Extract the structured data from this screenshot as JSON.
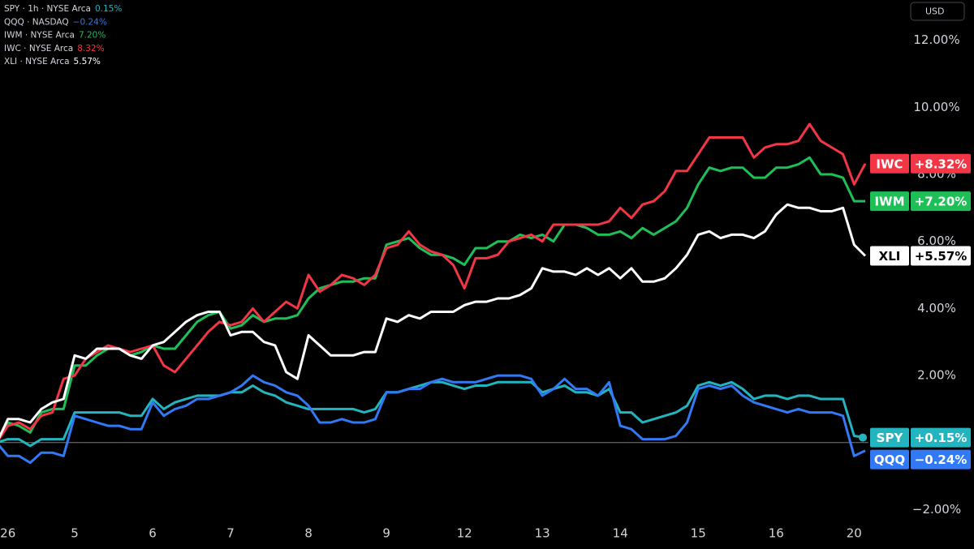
{
  "chart_data": {
    "type": "line",
    "currency": "USD",
    "categories": [
      null,
      "26",
      null,
      null,
      null,
      null,
      null,
      "5",
      null,
      null,
      null,
      null,
      null,
      null,
      "6",
      null,
      null,
      null,
      null,
      null,
      null,
      "7",
      null,
      null,
      null,
      null,
      null,
      null,
      "8",
      null,
      null,
      null,
      null,
      null,
      null,
      "9",
      null,
      null,
      null,
      null,
      null,
      null,
      "12",
      null,
      null,
      null,
      null,
      null,
      null,
      "13",
      null,
      null,
      null,
      null,
      null,
      null,
      "14",
      null,
      null,
      null,
      null,
      null,
      null,
      "15",
      null,
      null,
      null,
      null,
      null,
      null,
      "16",
      null,
      null,
      null,
      null,
      null,
      null,
      "20",
      null
    ],
    "ylim": [
      -2.4,
      13.2
    ],
    "yticks": [
      {
        "value": -2,
        "label": "−2.00%"
      },
      {
        "value": 2,
        "label": "2.00%"
      },
      {
        "value": 4,
        "label": "4.00%"
      },
      {
        "value": 6,
        "label": "6.00%"
      },
      {
        "value": 8,
        "label": "8.00%"
      },
      {
        "value": 10,
        "label": "10.00%"
      },
      {
        "value": 12,
        "label": "12.00%"
      }
    ],
    "baseline": 0,
    "series": [
      {
        "name": "SPY",
        "legend": "SPY · 1h · NYSE Arca",
        "legend_value": "0.15%",
        "badge_label": "+0.15%",
        "color": "#22b5bf",
        "values": [
          0,
          0.1,
          0.1,
          -0.1,
          0.1,
          0.1,
          0.1,
          0.9,
          0.9,
          0.9,
          0.9,
          0.9,
          0.8,
          0.8,
          1.3,
          1.0,
          1.2,
          1.3,
          1.4,
          1.4,
          1.4,
          1.5,
          1.5,
          1.7,
          1.5,
          1.4,
          1.2,
          1.1,
          1.0,
          1.0,
          1.0,
          1.0,
          1.0,
          0.9,
          1.0,
          1.5,
          1.5,
          1.6,
          1.7,
          1.8,
          1.8,
          1.7,
          1.6,
          1.7,
          1.7,
          1.8,
          1.8,
          1.8,
          1.8,
          1.5,
          1.6,
          1.7,
          1.5,
          1.5,
          1.4,
          1.6,
          0.9,
          0.9,
          0.6,
          0.7,
          0.8,
          0.9,
          1.1,
          1.7,
          1.8,
          1.7,
          1.8,
          1.6,
          1.3,
          1.4,
          1.4,
          1.3,
          1.4,
          1.4,
          1.3,
          1.3,
          1.3,
          0.2,
          0.15
        ]
      },
      {
        "name": "QQQ",
        "legend": "QQQ · NASDAQ",
        "legend_value": "−0.24%",
        "badge_label": "−0.24%",
        "color": "#3179f5",
        "values": [
          0,
          -0.4,
          -0.4,
          -0.6,
          -0.3,
          -0.3,
          -0.4,
          0.8,
          0.7,
          0.6,
          0.5,
          0.5,
          0.4,
          0.4,
          1.2,
          0.8,
          1.0,
          1.1,
          1.3,
          1.3,
          1.4,
          1.5,
          1.7,
          2.0,
          1.8,
          1.7,
          1.5,
          1.4,
          1.1,
          0.6,
          0.6,
          0.7,
          0.6,
          0.6,
          0.7,
          1.5,
          1.5,
          1.6,
          1.6,
          1.8,
          1.9,
          1.8,
          1.8,
          1.8,
          1.9,
          2.0,
          2.0,
          2.0,
          1.9,
          1.4,
          1.6,
          1.9,
          1.6,
          1.6,
          1.4,
          1.8,
          0.5,
          0.4,
          0.1,
          0.1,
          0.1,
          0.2,
          0.6,
          1.6,
          1.7,
          1.6,
          1.7,
          1.4,
          1.2,
          1.1,
          1.0,
          0.9,
          1.0,
          0.9,
          0.9,
          0.9,
          0.8,
          -0.4,
          -0.24
        ]
      },
      {
        "name": "IWM",
        "legend": "IWM · NYSE Arca",
        "legend_value": "7.20%",
        "badge_label": "+7.20%",
        "color": "#1fbf58",
        "values": [
          0,
          0.6,
          0.5,
          0.3,
          0.9,
          1.0,
          1.0,
          2.3,
          2.3,
          2.6,
          2.8,
          2.8,
          2.6,
          2.7,
          2.9,
          2.8,
          2.8,
          3.2,
          3.6,
          3.8,
          3.9,
          3.4,
          3.5,
          3.8,
          3.6,
          3.7,
          3.7,
          3.8,
          4.3,
          4.6,
          4.7,
          4.8,
          4.8,
          4.9,
          4.9,
          5.9,
          6.0,
          6.1,
          5.8,
          5.6,
          5.6,
          5.5,
          5.3,
          5.8,
          5.8,
          6.0,
          6.0,
          6.2,
          6.1,
          6.2,
          6.0,
          6.5,
          6.5,
          6.4,
          6.2,
          6.2,
          6.3,
          6.1,
          6.4,
          6.2,
          6.4,
          6.6,
          7.0,
          7.7,
          8.2,
          8.1,
          8.2,
          8.2,
          7.9,
          7.9,
          8.2,
          8.2,
          8.3,
          8.5,
          8.0,
          8.0,
          7.9,
          7.2,
          7.2
        ]
      },
      {
        "name": "IWC",
        "legend": "IWC · NYSE Arca",
        "legend_value": "8.32%",
        "badge_label": "+8.32%",
        "color": "#f23645",
        "values": [
          0,
          0.5,
          0.6,
          0.4,
          0.8,
          0.9,
          1.9,
          2.0,
          2.5,
          2.7,
          2.9,
          2.8,
          2.7,
          2.8,
          2.9,
          2.3,
          2.1,
          2.5,
          2.9,
          3.3,
          3.6,
          3.5,
          3.6,
          4.0,
          3.6,
          3.9,
          4.2,
          4.0,
          5.0,
          4.5,
          4.7,
          5.0,
          4.9,
          4.7,
          5.0,
          5.8,
          5.9,
          6.3,
          5.9,
          5.7,
          5.6,
          5.3,
          4.6,
          5.5,
          5.5,
          5.6,
          6.0,
          6.1,
          6.2,
          6.0,
          6.5,
          6.5,
          6.5,
          6.5,
          6.5,
          6.6,
          7.0,
          6.7,
          7.1,
          7.2,
          7.5,
          8.1,
          8.1,
          8.6,
          9.1,
          9.1,
          9.1,
          9.1,
          8.5,
          8.8,
          8.9,
          8.9,
          9.0,
          9.5,
          9.0,
          8.8,
          8.6,
          7.7,
          8.32
        ]
      },
      {
        "name": "XLI",
        "legend": "XLI · NYSE Arca",
        "legend_value": "5.57%",
        "badge_label": "+5.57%",
        "color": "#ffffff",
        "values": [
          0,
          0.7,
          0.7,
          0.6,
          1.0,
          1.2,
          1.3,
          2.6,
          2.5,
          2.8,
          2.8,
          2.8,
          2.6,
          2.5,
          2.9,
          3.0,
          3.3,
          3.6,
          3.8,
          3.9,
          3.9,
          3.2,
          3.3,
          3.3,
          3.0,
          2.9,
          2.1,
          1.9,
          3.2,
          2.9,
          2.6,
          2.6,
          2.6,
          2.7,
          2.7,
          3.7,
          3.6,
          3.8,
          3.7,
          3.9,
          3.9,
          3.9,
          4.1,
          4.2,
          4.2,
          4.3,
          4.3,
          4.4,
          4.6,
          5.2,
          5.1,
          5.1,
          5.0,
          5.2,
          5.0,
          5.2,
          4.9,
          5.2,
          4.8,
          4.8,
          4.9,
          5.2,
          5.6,
          6.2,
          6.3,
          6.1,
          6.2,
          6.2,
          6.1,
          6.3,
          6.8,
          7.1,
          7.0,
          7.0,
          6.9,
          6.9,
          7.0,
          5.9,
          5.57
        ]
      }
    ]
  }
}
